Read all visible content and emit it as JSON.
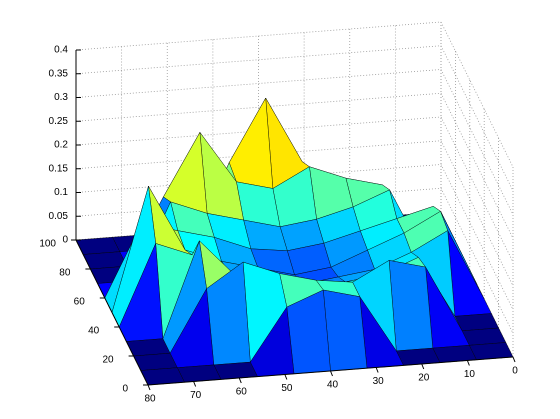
{
  "chart_data": {
    "type": "surface",
    "colormap": "jet",
    "grid": true,
    "x": [
      0,
      8,
      16,
      24,
      32,
      40,
      48,
      56,
      64,
      72,
      80
    ],
    "y": [
      0,
      10,
      20,
      30,
      40,
      50,
      60,
      70,
      80,
      90,
      100
    ],
    "z": [
      [
        0,
        0,
        0,
        0,
        0,
        0,
        0,
        0,
        0,
        0,
        0
      ],
      [
        0,
        0,
        0,
        0,
        0.12,
        0.14,
        0.11,
        0,
        0,
        0,
        0
      ],
      [
        0,
        0,
        0.14,
        0.16,
        0.12,
        0.13,
        0.15,
        0.18,
        0.13,
        0,
        0
      ],
      [
        0,
        0,
        0.13,
        0.1,
        0.09,
        0.08,
        0.1,
        0.12,
        0.2,
        0,
        0
      ],
      [
        0,
        0.15,
        0.11,
        0.08,
        0.07,
        0.06,
        0.08,
        0.1,
        0.14,
        0.17,
        0
      ],
      [
        0,
        0.16,
        0.12,
        0.09,
        0.06,
        0.05,
        0.07,
        0.09,
        0.12,
        0.26,
        0
      ],
      [
        0,
        0.14,
        0.12,
        0.1,
        0.08,
        0.07,
        0.08,
        0.11,
        0.13,
        0.15,
        0
      ],
      [
        0,
        0,
        0.15,
        0.12,
        0.1,
        0.09,
        0.11,
        0.13,
        0.16,
        0,
        0
      ],
      [
        0,
        0,
        0.13,
        0.15,
        0.18,
        0.14,
        0.16,
        0.27,
        0.14,
        0,
        0
      ],
      [
        0,
        0,
        0,
        0,
        0.16,
        0.3,
        0.17,
        0,
        0,
        0,
        0
      ],
      [
        0,
        0,
        0,
        0,
        0,
        0,
        0,
        0,
        0,
        0,
        0
      ]
    ],
    "xlim": [
      0,
      80
    ],
    "xticks": [
      0,
      10,
      20,
      30,
      40,
      50,
      60,
      70,
      80
    ],
    "ylim": [
      0,
      100
    ],
    "yticks": [
      0,
      20,
      40,
      60,
      80,
      100
    ],
    "zlim": [
      0,
      0.4
    ],
    "zticks": [
      0,
      0.05,
      0.1,
      0.15,
      0.2,
      0.25,
      0.3,
      0.35,
      0.4
    ]
  }
}
